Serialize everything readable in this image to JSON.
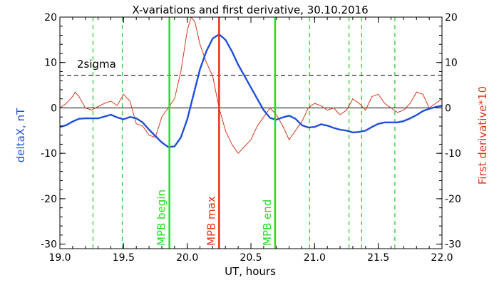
{
  "chart_data": {
    "type": "line",
    "title": "X-variations and first derivative, 30.10.2016",
    "xlabel": "UT, hours",
    "ylabel_left": "deltaX, nT",
    "ylabel_right": "First derivative*10",
    "xlim": [
      19.0,
      22.0
    ],
    "ylim_left": [
      -31,
      20
    ],
    "ylim_right": [
      -31,
      20
    ],
    "x_ticks": [
      "19.0",
      "19.5",
      "20.0",
      "20.5",
      "21.0",
      "21.5",
      "22.0"
    ],
    "y_ticks": [
      "-30",
      "-20",
      "-10",
      "0",
      "10",
      "20"
    ],
    "grid": false,
    "colors": {
      "deltaX": "#1f4fd6",
      "derivative": "#d33a1c",
      "mpb_max": "#e8341c",
      "mpb_bounds": "#22dd22",
      "dashed_markers": "#22cc22",
      "axes": "#000000"
    },
    "annotations": {
      "sigma_label": "2sigma",
      "sigma_level": 7.2,
      "mpb_begin": {
        "label": "MPB begin",
        "x": 19.86
      },
      "mpb_max": {
        "label": "MPB max",
        "x": 20.25
      },
      "mpb_end": {
        "label": "MPB end",
        "x": 20.69
      },
      "dashed_x": [
        19.26,
        19.49,
        20.96,
        21.27,
        21.37,
        21.63
      ]
    },
    "series": [
      {
        "axis": "left",
        "x": [
          19.0,
          19.05,
          19.1,
          19.15,
          19.2,
          19.25,
          19.3,
          19.35,
          19.4,
          19.45,
          19.5,
          19.55,
          19.6,
          19.65,
          19.7,
          19.75,
          19.8,
          19.85,
          19.9,
          19.95,
          20.0,
          20.05,
          20.1,
          20.15,
          20.2,
          20.25,
          20.3,
          20.35,
          20.4,
          20.45,
          20.5,
          20.55,
          20.6,
          20.65,
          20.7,
          20.75,
          20.8,
          20.85,
          20.9,
          20.95,
          21.0,
          21.05,
          21.1,
          21.15,
          21.2,
          21.25,
          21.3,
          21.35,
          21.4,
          21.45,
          21.5,
          21.55,
          21.6,
          21.65,
          21.7,
          21.75,
          21.8,
          21.85,
          21.9,
          21.95,
          22.0
        ],
        "values": [
          -4.2,
          -3.8,
          -3.0,
          -2.4,
          -2.3,
          -2.3,
          -2.3,
          -1.9,
          -1.5,
          -2.1,
          -2.5,
          -2.0,
          -2.3,
          -3.2,
          -4.8,
          -6.2,
          -7.6,
          -8.6,
          -8.5,
          -6.5,
          -2.5,
          3.0,
          8.5,
          12.5,
          15.3,
          16.2,
          15.0,
          12.5,
          9.5,
          7.0,
          4.5,
          2.0,
          -0.5,
          -2.2,
          -2.6,
          -2.1,
          -1.7,
          -2.4,
          -3.8,
          -4.3,
          -4.2,
          -3.6,
          -3.9,
          -4.4,
          -4.8,
          -5.0,
          -5.4,
          -5.3,
          -5.0,
          -4.2,
          -3.5,
          -3.2,
          -3.2,
          -3.2,
          -2.9,
          -2.3,
          -1.6,
          -0.7,
          -0.2,
          0.2,
          0.5
        ]
      },
      {
        "axis": "right",
        "x": [
          19.0,
          19.05,
          19.1,
          19.12,
          19.15,
          19.2,
          19.25,
          19.3,
          19.35,
          19.4,
          19.45,
          19.5,
          19.55,
          19.6,
          19.65,
          19.7,
          19.75,
          19.8,
          19.85,
          19.9,
          19.95,
          20.0,
          20.03,
          20.06,
          20.1,
          20.15,
          20.2,
          20.25,
          20.3,
          20.35,
          20.4,
          20.45,
          20.5,
          20.55,
          20.6,
          20.65,
          20.7,
          20.75,
          20.8,
          20.85,
          20.9,
          20.95,
          21.0,
          21.05,
          21.1,
          21.15,
          21.2,
          21.25,
          21.3,
          21.35,
          21.4,
          21.45,
          21.5,
          21.55,
          21.6,
          21.65,
          21.7,
          21.75,
          21.8,
          21.85,
          21.9,
          21.95,
          22.0
        ],
        "values": [
          0.0,
          1.0,
          2.5,
          3.5,
          2.5,
          0.0,
          -0.5,
          0.3,
          1.0,
          1.5,
          0.5,
          3.0,
          1.5,
          -3.5,
          -4.0,
          -6.0,
          -6.5,
          -2.0,
          0.0,
          2.0,
          8.0,
          17.0,
          20.0,
          19.0,
          14.0,
          10.0,
          7.0,
          0.0,
          -5.0,
          -8.0,
          -10.0,
          -8.5,
          -7.0,
          -4.0,
          -2.0,
          0.0,
          -1.5,
          -4.0,
          -7.0,
          -5.0,
          -3.0,
          0.0,
          1.0,
          0.5,
          -0.5,
          0.0,
          -1.5,
          -0.5,
          2.0,
          1.0,
          -0.5,
          2.5,
          3.0,
          1.0,
          0.0,
          -1.0,
          -0.5,
          1.0,
          3.5,
          3.0,
          0.0,
          1.0,
          2.0
        ]
      }
    ]
  }
}
